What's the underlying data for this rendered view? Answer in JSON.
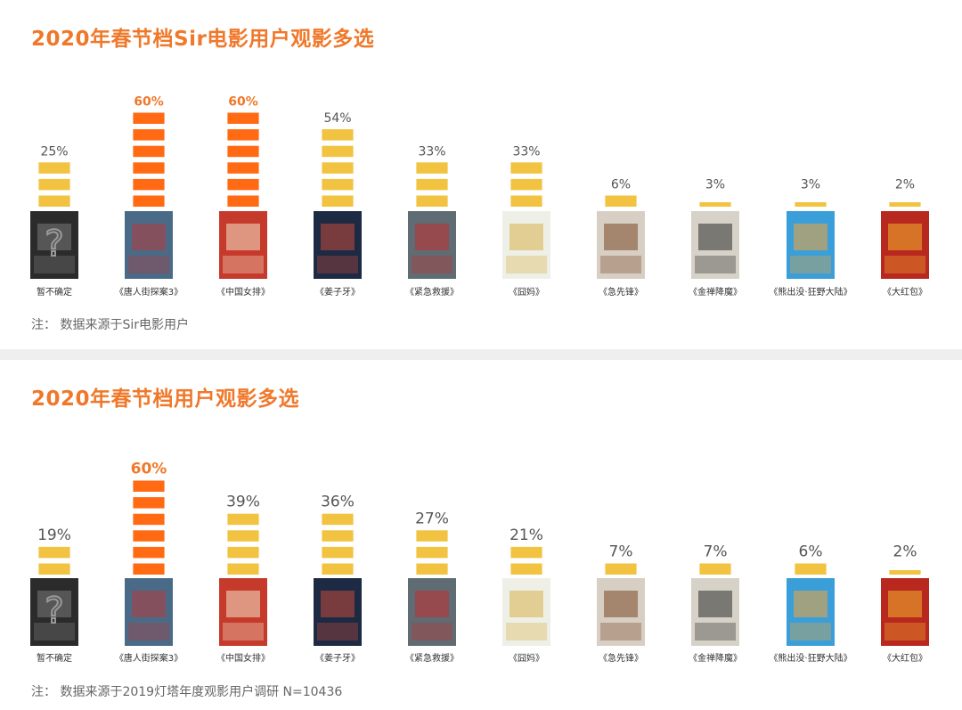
{
  "colors": {
    "title": "#f0782a",
    "bar_highlight": "#ff6a13",
    "bar_normal": "#f2c241",
    "label_highlight": "#f0782a",
    "label_normal": "#555555"
  },
  "panels": [
    {
      "title": "2020年春节档Sir电影用户观影多选",
      "note": "注：  数据来源于Sir电影用户"
    },
    {
      "title": "2020年春节档用户观影多选",
      "note": "注：  数据来源于2019灯塔年度观影用户调研 N=10436"
    }
  ],
  "chart_data": [
    {
      "type": "bar",
      "title": "2020年春节档Sir电影用户观影多选",
      "categories": [
        "暂不确定",
        "《唐人街探案3》",
        "《中国女排》",
        "《姜子牙》",
        "《紧急救援》",
        "《囧妈》",
        "《急先锋》",
        "《金禅降魔》",
        "《熊出没·狂野大陆》",
        "《大红包》"
      ],
      "values": [
        25,
        60,
        60,
        54,
        33,
        33,
        6,
        3,
        3,
        2
      ],
      "value_labels": [
        "25%",
        "60%",
        "60%",
        "54%",
        "33%",
        "33%",
        "6%",
        "3%",
        "3%",
        "2%"
      ],
      "highlight": [
        false,
        true,
        true,
        false,
        false,
        false,
        false,
        false,
        false,
        false
      ],
      "unit": "%",
      "ylim": [
        0,
        60
      ],
      "grid": false
    },
    {
      "type": "bar",
      "title": "2020年春节档用户观影多选",
      "categories": [
        "暂不确定",
        "《唐人街探案3》",
        "《中国女排》",
        "《姜子牙》",
        "《紧急救援》",
        "《囧妈》",
        "《急先锋》",
        "《金禅降魔》",
        "《熊出没·狂野大陆》",
        "《大红包》"
      ],
      "values": [
        19,
        60,
        39,
        36,
        27,
        21,
        7,
        7,
        6,
        2
      ],
      "value_labels": [
        "19%",
        "60%",
        "39%",
        "36%",
        "27%",
        "21%",
        "7%",
        "7%",
        "6%",
        "2%"
      ],
      "highlight": [
        false,
        true,
        false,
        false,
        false,
        false,
        false,
        false,
        false,
        false
      ],
      "unit": "%",
      "ylim": [
        0,
        60
      ],
      "grid": false
    }
  ],
  "posters": [
    {
      "name": "unknown-question-poster",
      "bg": "#2b2b2b",
      "accent": "#7a7a7a",
      "glyph": "?"
    },
    {
      "name": "detective-chinatown-3-poster",
      "bg": "#4a6b88",
      "accent": "#b43a3a",
      "glyph": ""
    },
    {
      "name": "leap-poster",
      "bg": "#c63a2c",
      "accent": "#f4e2c8",
      "glyph": ""
    },
    {
      "name": "jiang-ziya-poster",
      "bg": "#1d2a44",
      "accent": "#c24a3a",
      "glyph": ""
    },
    {
      "name": "the-rescue-poster",
      "bg": "#5f6c74",
      "accent": "#c23030",
      "glyph": ""
    },
    {
      "name": "lost-in-russia-poster",
      "bg": "#eef0e8",
      "accent": "#d9b24a",
      "glyph": ""
    },
    {
      "name": "vanguard-poster",
      "bg": "#d8cfc4",
      "accent": "#7a4a2a",
      "glyph": ""
    },
    {
      "name": "jin-chan-poster",
      "bg": "#d7d2c8",
      "accent": "#2d2d2d",
      "glyph": ""
    },
    {
      "name": "boonie-bears-poster",
      "bg": "#3a9fd8",
      "accent": "#f2a23a",
      "glyph": ""
    },
    {
      "name": "red-packet-poster",
      "bg": "#b8281e",
      "accent": "#f0b030",
      "glyph": ""
    }
  ]
}
